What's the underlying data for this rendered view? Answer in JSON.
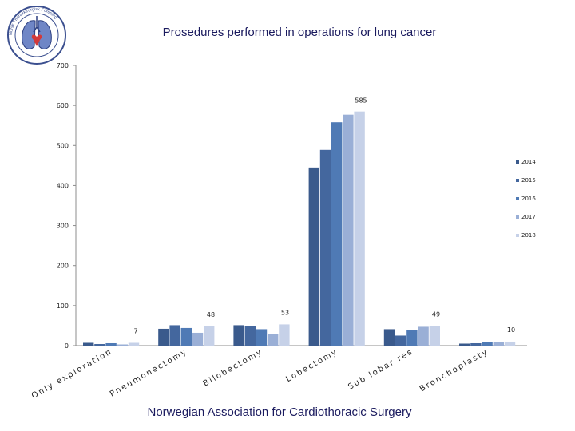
{
  "header": {
    "logo_ring_text": "Norsk Thoraxkirurgisk Forening"
  },
  "footer": {
    "text": "Norwegian Association for Cardiothoracic Surgery"
  },
  "chart_data": {
    "type": "bar",
    "title": "Prosedures performed in operations for lung cancer",
    "categories": [
      "Only exploration",
      "Pneumonectomy",
      "Bilobectomy",
      "Lobectomy",
      "Sub lobar res",
      "Bronchoplasty"
    ],
    "series": [
      {
        "name": "2014",
        "color": "#3a5a8c",
        "values": [
          7,
          42,
          51,
          445,
          41,
          5
        ]
      },
      {
        "name": "2015",
        "color": "#44679e",
        "values": [
          4,
          51,
          49,
          489,
          25,
          6
        ]
      },
      {
        "name": "2016",
        "color": "#4f7ab5",
        "values": [
          6,
          44,
          41,
          558,
          38,
          9
        ]
      },
      {
        "name": "2017",
        "color": "#9aafd6",
        "values": [
          3,
          32,
          28,
          577,
          47,
          8
        ]
      },
      {
        "name": "2018",
        "color": "#c6d1e8",
        "values": [
          7,
          48,
          53,
          585,
          49,
          10
        ]
      }
    ],
    "data_labels": [
      {
        "category_index": 0,
        "series": "2018",
        "text": "7"
      },
      {
        "category_index": 1,
        "series": "2018",
        "text": "48"
      },
      {
        "category_index": 2,
        "series": "2018",
        "text": "53"
      },
      {
        "category_index": 3,
        "series": "2018",
        "text": "585"
      },
      {
        "category_index": 4,
        "series": "2018",
        "text": "49"
      },
      {
        "category_index": 5,
        "series": "2018",
        "text": "10"
      }
    ],
    "ylim": [
      0,
      700
    ],
    "yticks": [
      0,
      100,
      200,
      300,
      400,
      500,
      600,
      700
    ],
    "xlabel": "",
    "ylabel": "",
    "grid": false,
    "legend_position": "right"
  }
}
